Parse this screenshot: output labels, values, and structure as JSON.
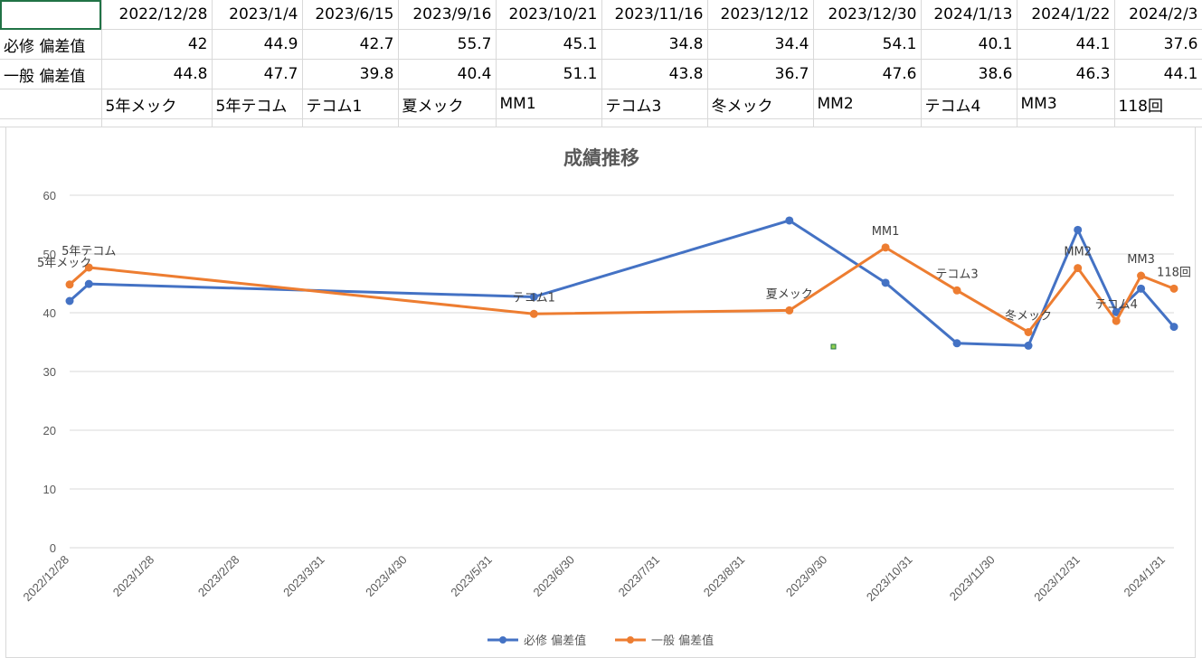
{
  "spreadsheet": {
    "header_dates": [
      "",
      "2022/12/28",
      "2023/1/4",
      "2023/6/15",
      "2023/9/16",
      "2023/10/21",
      "2023/11/16",
      "2023/12/12",
      "2023/12/30",
      "2024/1/13",
      "2024/1/22",
      "2024/2/3"
    ],
    "row_hisshu": [
      "必修 偏差值",
      "42",
      "44.9",
      "42.7",
      "55.7",
      "45.1",
      "34.8",
      "34.4",
      "54.1",
      "40.1",
      "44.1",
      "37.6"
    ],
    "row_ippan": [
      "一般 偏差值",
      "44.8",
      "47.7",
      "39.8",
      "40.4",
      "51.1",
      "43.8",
      "36.7",
      "47.6",
      "38.6",
      "46.3",
      "44.1"
    ],
    "row_exams": [
      "",
      "5年メック",
      "5年テコム",
      "テコム1",
      "夏メック",
      "MM1",
      "テコム3",
      "冬メック",
      "MM2",
      "テコム4",
      "MM3",
      "118回"
    ]
  },
  "chart_data": {
    "type": "line",
    "title": "成績推移",
    "xlabel": "",
    "ylabel": "",
    "ylim": [
      0,
      60
    ],
    "yticks": [
      0,
      10,
      20,
      30,
      40,
      50,
      60
    ],
    "xlim": [
      "2022-12-28",
      "2024-02-03"
    ],
    "xtick_labels": [
      "2022/12/28",
      "2023/1/28",
      "2023/2/28",
      "2023/3/31",
      "2023/4/30",
      "2023/5/31",
      "2023/6/30",
      "2023/7/31",
      "2023/8/31",
      "2023/9/30",
      "2023/10/31",
      "2023/11/30",
      "2023/12/31",
      "2024/1/31"
    ],
    "xtick_dates": [
      "2022-12-28",
      "2023-01-28",
      "2023-02-28",
      "2023-03-31",
      "2023-04-30",
      "2023-05-31",
      "2023-06-30",
      "2023-07-31",
      "2023-08-31",
      "2023-09-30",
      "2023-10-31",
      "2023-11-30",
      "2023-12-31",
      "2024-01-31"
    ],
    "x": [
      "2022-12-28",
      "2023-01-04",
      "2023-06-15",
      "2023-09-16",
      "2023-10-21",
      "2023-11-16",
      "2023-12-12",
      "2023-12-30",
      "2024-01-13",
      "2024-01-22",
      "2024-02-03"
    ],
    "point_labels": [
      "5年メック",
      "5年テコム",
      "テコム1",
      "夏メック",
      "MM1",
      "テコム3",
      "冬メック",
      "MM2",
      "テコム4",
      "MM3",
      "118回"
    ],
    "series": [
      {
        "name": "必修 偏差值",
        "color": "#4472C4",
        "values": [
          42,
          44.9,
          42.7,
          55.7,
          45.1,
          34.8,
          34.4,
          54.1,
          40.1,
          44.1,
          37.6
        ]
      },
      {
        "name": "一般 偏差值",
        "color": "#ED7D31",
        "values": [
          44.8,
          47.7,
          39.8,
          40.4,
          51.1,
          43.8,
          36.7,
          47.6,
          38.6,
          46.3,
          44.1
        ]
      }
    ],
    "legend_position": "bottom",
    "grid": true
  }
}
